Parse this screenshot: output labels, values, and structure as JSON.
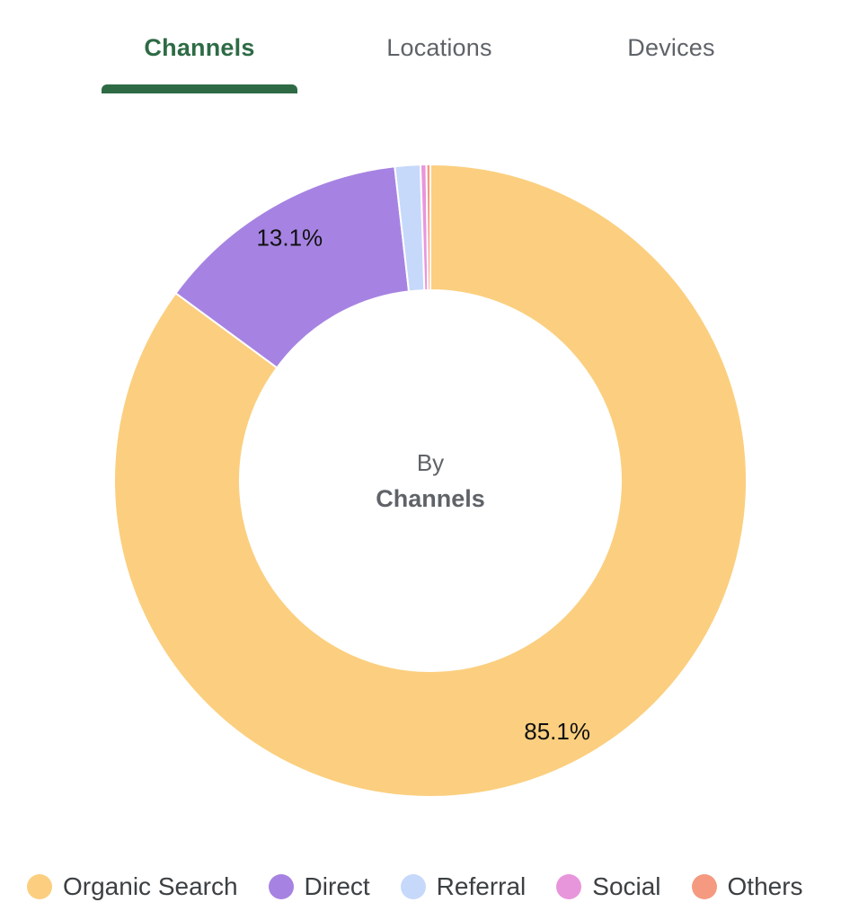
{
  "tabs": [
    {
      "label": "Channels",
      "active": true
    },
    {
      "label": "Locations",
      "active": false
    },
    {
      "label": "Devices",
      "active": false
    }
  ],
  "center_text": {
    "line1": "By",
    "line2": "Channels"
  },
  "colors": {
    "active_tab": "#2e6b45",
    "inactive_tab": "#5f6368"
  },
  "chart_data": {
    "type": "pie",
    "variant": "donut",
    "series": [
      {
        "name": "Organic Search",
        "value": 85.1,
        "color": "#fbcf7f",
        "label": "85.1%"
      },
      {
        "name": "Direct",
        "value": 13.1,
        "color": "#a683e2",
        "label": "13.1%"
      },
      {
        "name": "Referral",
        "value": 1.3,
        "color": "#c6d9fb",
        "label": ""
      },
      {
        "name": "Social",
        "value": 0.3,
        "color": "#e896dc",
        "label": ""
      },
      {
        "name": "Others",
        "value": 0.2,
        "color": "#f59a80",
        "label": ""
      }
    ],
    "legend_position": "bottom"
  }
}
